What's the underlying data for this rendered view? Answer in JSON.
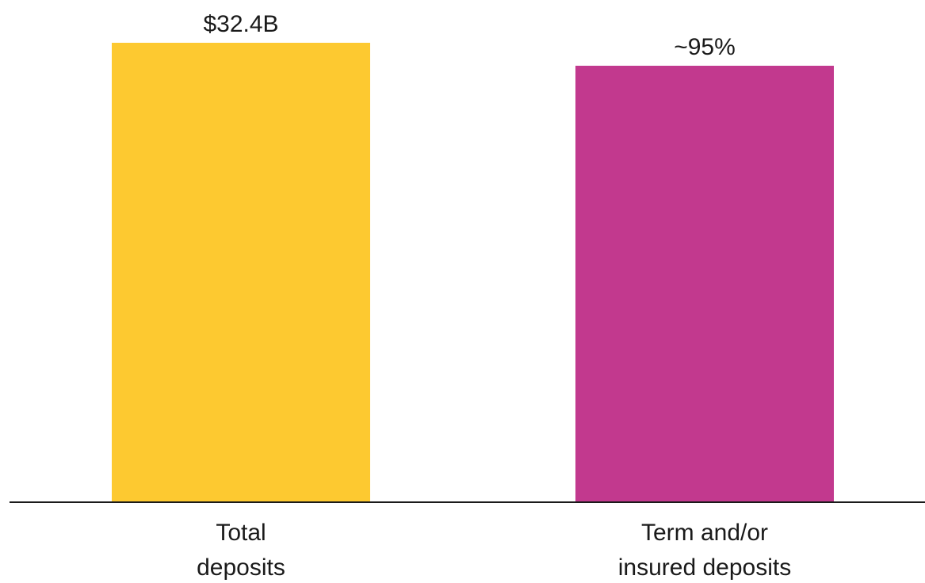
{
  "chart_data": {
    "type": "bar",
    "title": "",
    "xlabel": "",
    "ylabel": "",
    "categories": [
      [
        "Total",
        "deposits"
      ],
      [
        "Term and/or",
        "insured deposits"
      ]
    ],
    "values": [
      100,
      95
    ],
    "value_labels": [
      "$32.4B",
      "~95%"
    ],
    "ylim": [
      0,
      100
    ],
    "colors": [
      "#fdc930",
      "#c2398e"
    ],
    "grid": false,
    "axis_color": "#1a1a1a"
  }
}
